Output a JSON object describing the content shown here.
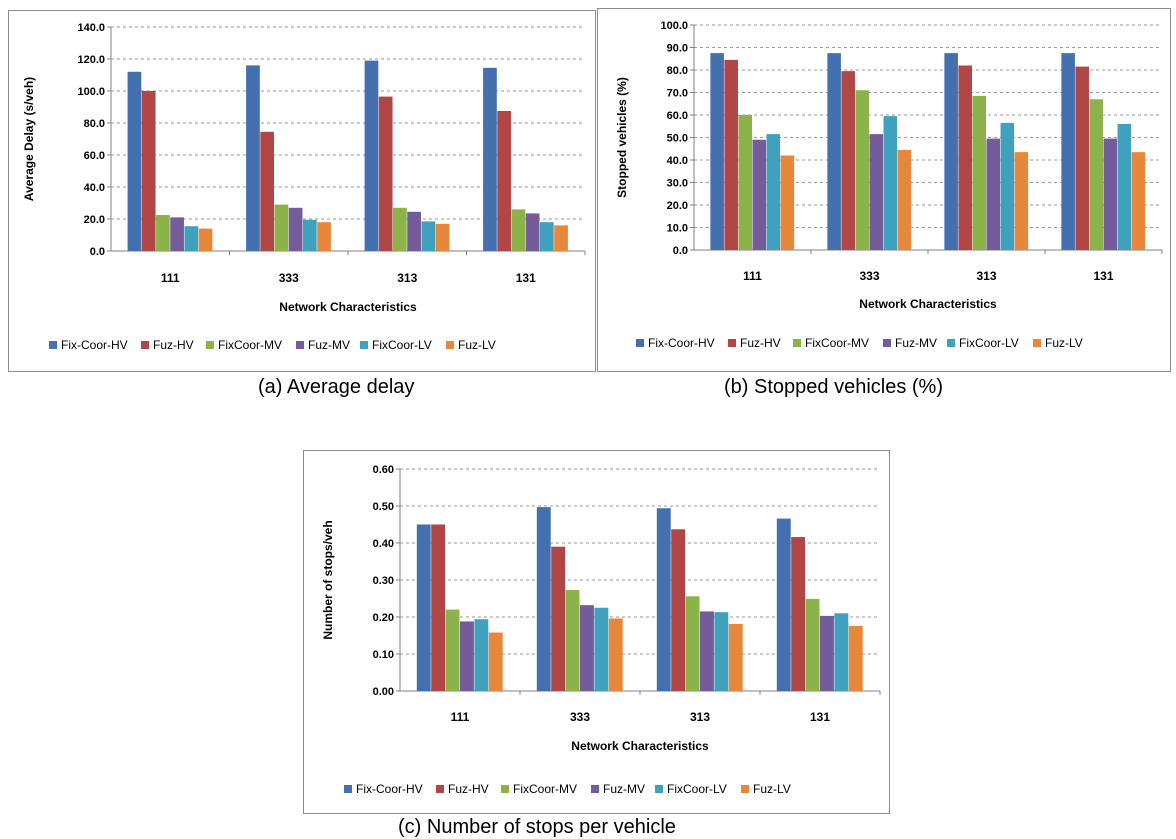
{
  "legend_colors": [
    "#4470b0",
    "#b04646",
    "#8cb24a",
    "#745b9a",
    "#3fa1bd",
    "#e6873c"
  ],
  "chart_data": [
    {
      "type": "bar",
      "caption": "(a)   Average delay",
      "xlabel": "Network Characteristics",
      "ylabel": "Average Delay (s/veh)",
      "categories": [
        "111",
        "333",
        "313",
        "131"
      ],
      "ylim": [
        0,
        140
      ],
      "yticks": [
        "0.0",
        "20.0",
        "40.0",
        "60.0",
        "80.0",
        "100.0",
        "120.0",
        "140.0"
      ],
      "grid": true,
      "legend_position": "bottom",
      "series": [
        {
          "name": "Fix-Coor-HV",
          "values": [
            112,
            116,
            119,
            114.5
          ]
        },
        {
          "name": "Fuz-HV",
          "values": [
            100,
            74.5,
            96.5,
            87.5
          ]
        },
        {
          "name": "FixCoor-MV",
          "values": [
            22.5,
            29,
            27,
            26
          ]
        },
        {
          "name": "Fuz-MV",
          "values": [
            21,
            27,
            24.5,
            23.5
          ]
        },
        {
          "name": "FixCoor-LV",
          "values": [
            15.5,
            19.5,
            18.5,
            18
          ]
        },
        {
          "name": "Fuz-LV",
          "values": [
            14,
            18,
            17,
            16
          ]
        }
      ]
    },
    {
      "type": "bar",
      "caption": "(b) Stopped vehicles (%)",
      "xlabel": "Network Characteristics",
      "ylabel": "Stopped vehicles (%)",
      "categories": [
        "111",
        "333",
        "313",
        "131"
      ],
      "ylim": [
        0,
        100
      ],
      "yticks": [
        "0.0",
        "10.0",
        "20.0",
        "30.0",
        "40.0",
        "50.0",
        "60.0",
        "70.0",
        "80.0",
        "90.0",
        "100.0"
      ],
      "grid": true,
      "legend_position": "bottom",
      "series": [
        {
          "name": "Fix-Coor-HV",
          "values": [
            87.5,
            87.5,
            87.5,
            87.5
          ]
        },
        {
          "name": "Fuz-HV",
          "values": [
            84.5,
            79.5,
            82,
            81.5
          ]
        },
        {
          "name": "FixCoor-MV",
          "values": [
            60,
            71,
            68.5,
            67
          ]
        },
        {
          "name": "Fuz-MV",
          "values": [
            49,
            51.5,
            49.5,
            49.5
          ]
        },
        {
          "name": "FixCoor-LV",
          "values": [
            51.5,
            59.5,
            56.5,
            56
          ]
        },
        {
          "name": "Fuz-LV",
          "values": [
            42,
            44.5,
            43.5,
            43.5
          ]
        }
      ]
    },
    {
      "type": "bar",
      "caption": "(c) Number of stops per vehicle",
      "xlabel": "Network Characteristics",
      "ylabel": "Number of stops/veh",
      "categories": [
        "111",
        "333",
        "313",
        "131"
      ],
      "ylim": [
        0,
        0.6
      ],
      "yticks": [
        "0.00",
        "0.10",
        "0.20",
        "0.30",
        "0.40",
        "0.50",
        "0.60"
      ],
      "grid": true,
      "legend_position": "bottom",
      "series": [
        {
          "name": "Fix-Coor-HV",
          "values": [
            0.45,
            0.497,
            0.494,
            0.466
          ]
        },
        {
          "name": "Fuz-HV",
          "values": [
            0.45,
            0.39,
            0.437,
            0.416
          ]
        },
        {
          "name": "FixCoor-MV",
          "values": [
            0.22,
            0.273,
            0.256,
            0.249
          ]
        },
        {
          "name": "Fuz-MV",
          "values": [
            0.188,
            0.232,
            0.215,
            0.203
          ]
        },
        {
          "name": "FixCoor-LV",
          "values": [
            0.194,
            0.225,
            0.213,
            0.21
          ]
        },
        {
          "name": "Fuz-LV",
          "values": [
            0.158,
            0.196,
            0.181,
            0.176
          ]
        }
      ]
    }
  ]
}
